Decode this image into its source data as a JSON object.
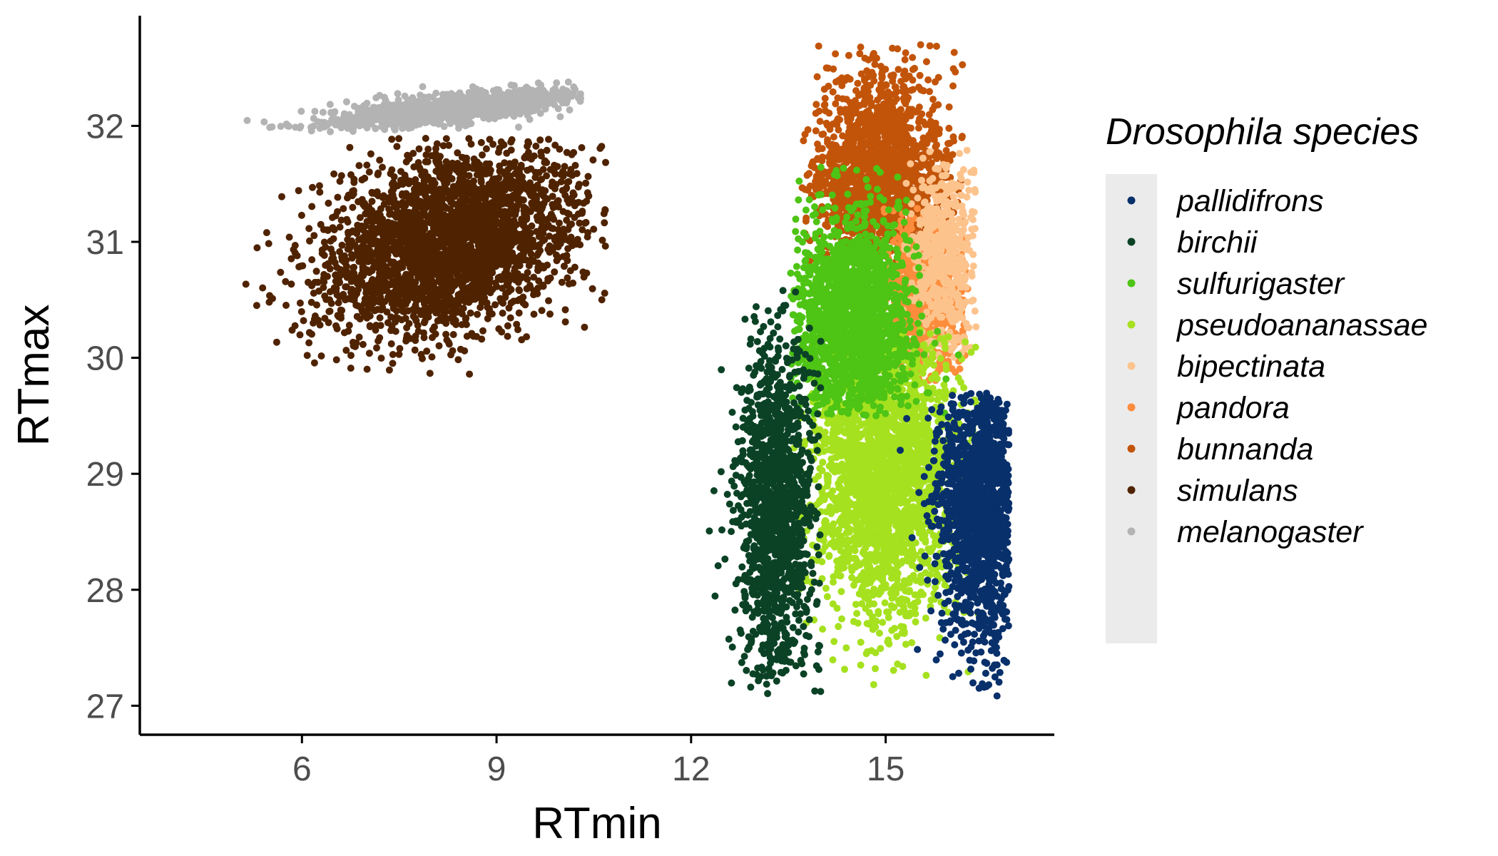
{
  "chart_data": {
    "type": "scatter",
    "xlabel": "RTmin",
    "ylabel": "RTmax",
    "xlim": [
      3.5,
      17.6
    ],
    "ylim": [
      26.75,
      32.95
    ],
    "x_ticks": [
      6,
      9,
      12,
      15
    ],
    "y_ticks": [
      27,
      28,
      29,
      30,
      31,
      32
    ],
    "grid": false,
    "legend": {
      "title": "Drosophila species",
      "placement": "right"
    },
    "series": [
      {
        "name": "pallidifrons",
        "color": "#08306b",
        "center": [
          16.5,
          28.7
        ],
        "spread": [
          0.35,
          0.6
        ],
        "approx_count": 1400,
        "x_range": [
          13.9,
          16.9
        ],
        "y_range": [
          27.0,
          29.7
        ]
      },
      {
        "name": "birchii",
        "color": "#0b4226",
        "center": [
          13.3,
          28.7
        ],
        "spread": [
          0.3,
          0.75
        ],
        "approx_count": 1400,
        "x_range": [
          11.7,
          14.0
        ],
        "y_range": [
          27.1,
          30.6
        ]
      },
      {
        "name": "sulfurigaster",
        "color": "#4ec414",
        "center": [
          14.5,
          30.3
        ],
        "spread": [
          0.45,
          0.45
        ],
        "approx_count": 1700,
        "x_range": [
          13.5,
          16.4
        ],
        "y_range": [
          29.5,
          31.7
        ]
      },
      {
        "name": "pseudoananassae",
        "color": "#a6e11f",
        "center": [
          15.0,
          29.0
        ],
        "spread": [
          0.55,
          0.6
        ],
        "approx_count": 2400,
        "x_range": [
          13.3,
          16.5
        ],
        "y_range": [
          27.1,
          30.3
        ]
      },
      {
        "name": "bipectinata",
        "color": "#fdc38d",
        "center": [
          15.9,
          30.9
        ],
        "spread": [
          0.25,
          0.45
        ],
        "approx_count": 500,
        "x_range": [
          15.2,
          16.4
        ],
        "y_range": [
          30.0,
          31.8
        ]
      },
      {
        "name": "pandora",
        "color": "#fd8d3c",
        "center": [
          15.6,
          30.5
        ],
        "spread": [
          0.3,
          0.35
        ],
        "approx_count": 800,
        "x_range": [
          14.9,
          16.3
        ],
        "y_range": [
          29.8,
          31.3
        ]
      },
      {
        "name": "bunnanda",
        "color": "#c2540a",
        "center": [
          14.9,
          31.6
        ],
        "spread": [
          0.5,
          0.45
        ],
        "approx_count": 1700,
        "x_range": [
          13.7,
          16.2
        ],
        "y_range": [
          30.8,
          32.7
        ]
      },
      {
        "name": "simulans",
        "color": "#4f2300",
        "center": [
          8.3,
          31.0
        ],
        "spread": [
          1.0,
          0.38
        ],
        "approx_count": 2800,
        "x_range": [
          4.0,
          10.7
        ],
        "y_range": [
          29.85,
          31.9
        ]
      },
      {
        "name": "melanogaster",
        "color": "#b3b3b3",
        "center": [
          8.4,
          32.15
        ],
        "spread": [
          1.0,
          0.06
        ],
        "approx_count": 1200,
        "x_range": [
          4.6,
          10.3
        ],
        "y_range": [
          31.95,
          32.45
        ]
      }
    ]
  }
}
